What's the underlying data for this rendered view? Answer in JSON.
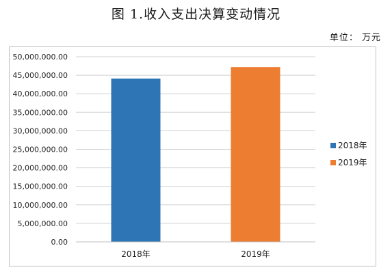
{
  "title": "图 1.收入支出决算变动情况",
  "unit_label": "单位：  万元",
  "chart_data": {
    "type": "bar",
    "categories": [
      "2018年",
      "2019年"
    ],
    "values": [
      44100000,
      47200000
    ],
    "colors": [
      "#2E75B6",
      "#ED7D31"
    ],
    "ylim": [
      0,
      50000000
    ],
    "ytick_step": 5000000,
    "ytick_labels": [
      "0.00",
      "5,000,000.00",
      "10,000,000.00",
      "15,000,000.00",
      "20,000,000.00",
      "25,000,000.00",
      "30,000,000.00",
      "35,000,000.00",
      "40,000,000.00",
      "45,000,000.00",
      "50,000,000.00"
    ],
    "grid": true,
    "legend_position": "right",
    "legend": [
      "2018年",
      "2019年"
    ]
  }
}
